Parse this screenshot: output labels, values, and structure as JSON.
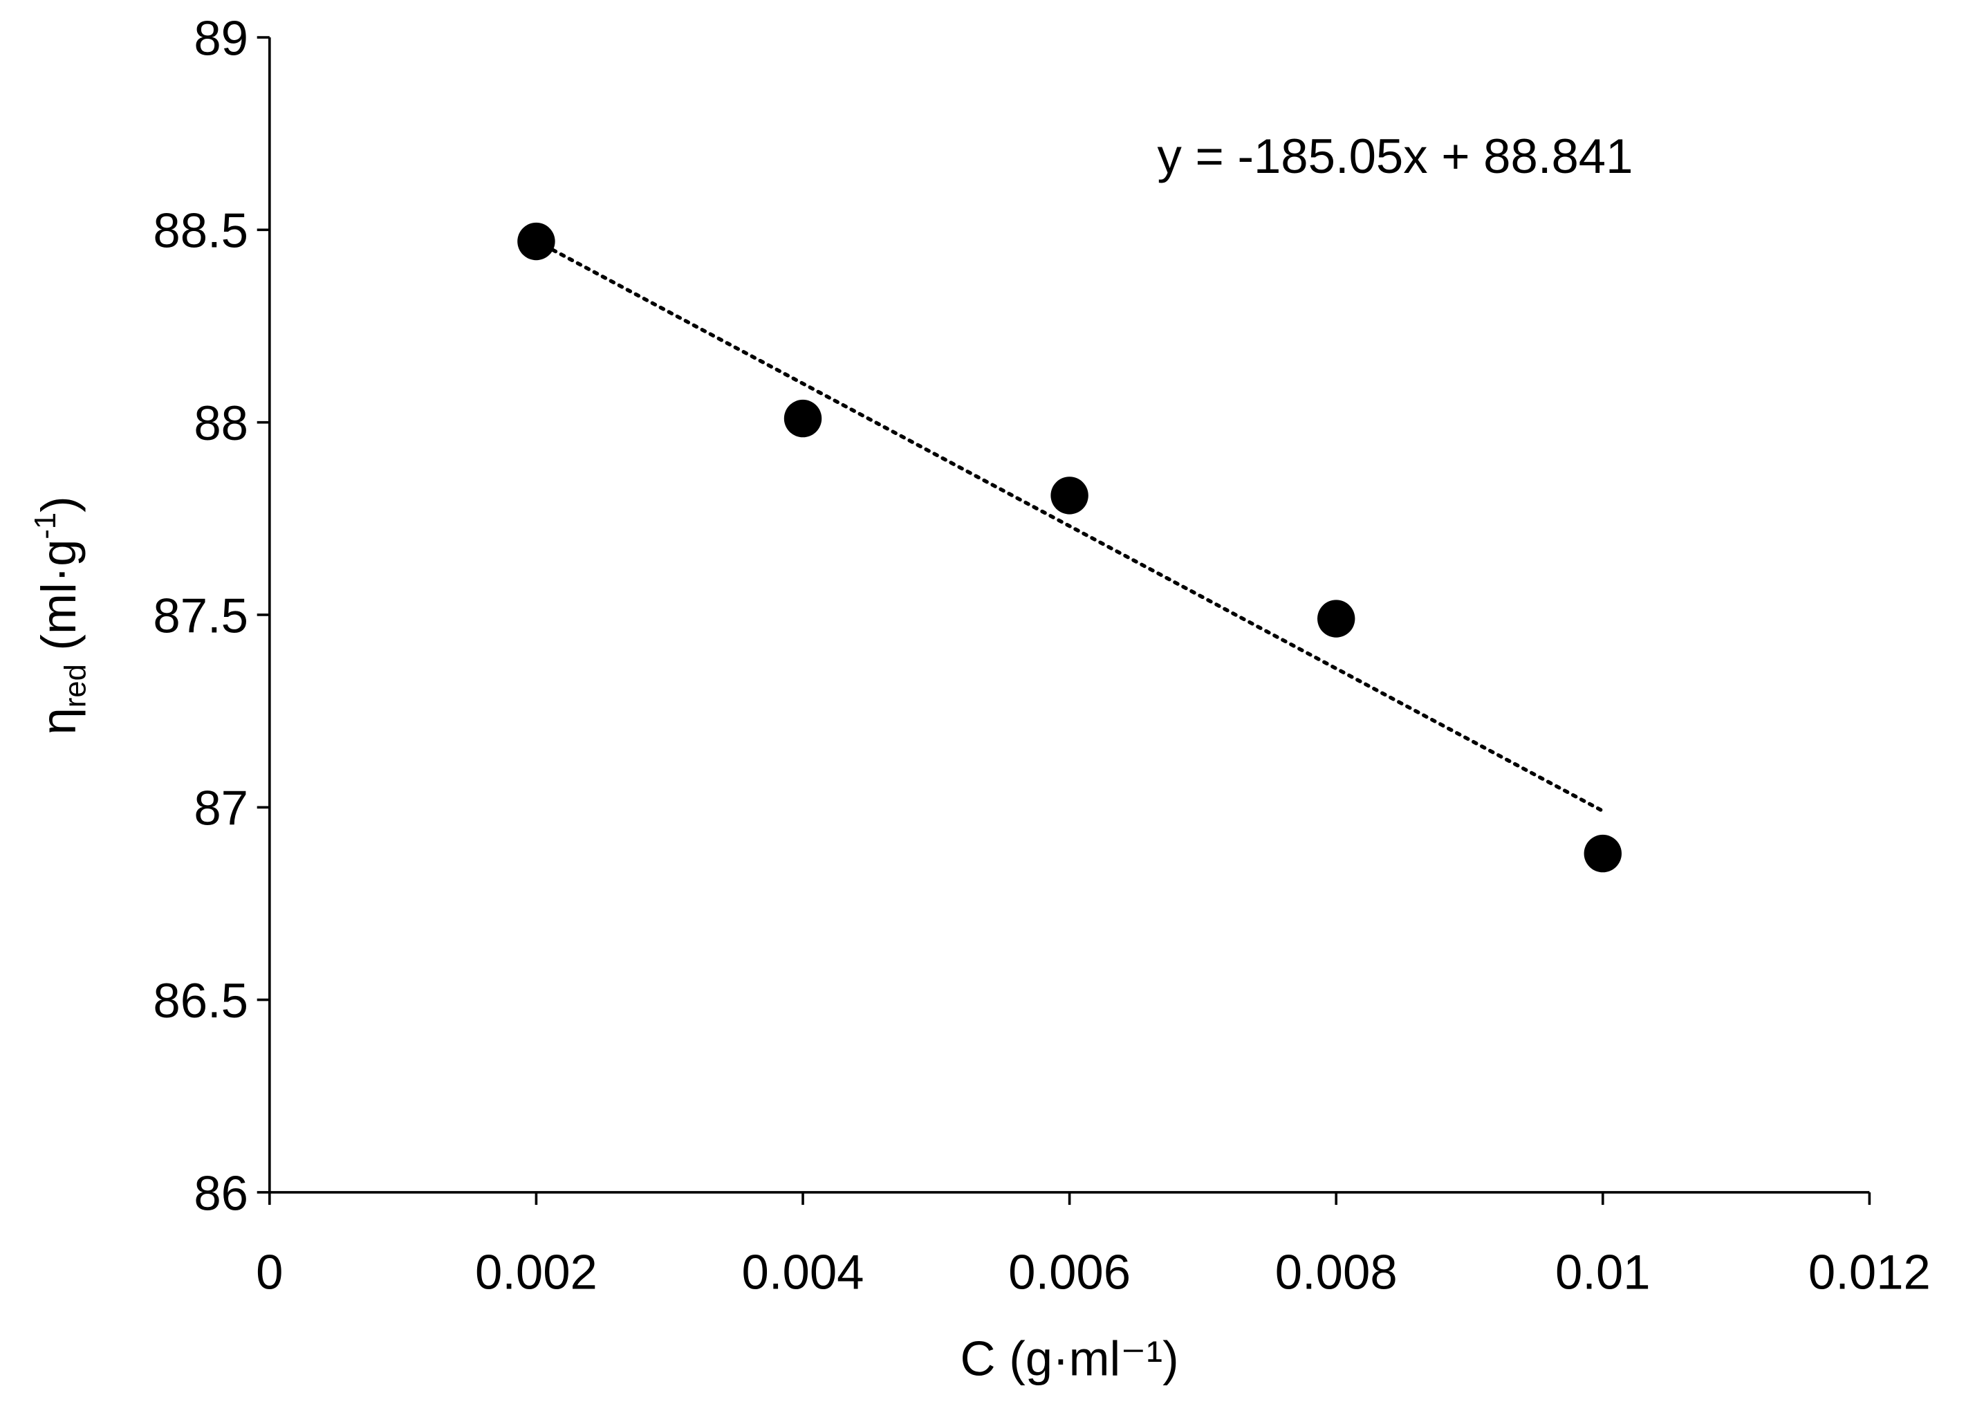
{
  "chart_data": {
    "type": "scatter",
    "xlabel": "C (g·ml⁻¹)",
    "xlabel_parts": {
      "main": "C (g·ml",
      "sup": "-1",
      "end": ")"
    },
    "ylabel": "ηred (ml·g⁻¹)",
    "ylabel_parts": {
      "eta": "η",
      "sub": "red",
      "main": " (ml·g",
      "sup": "-1",
      "end": ")"
    },
    "xlim": [
      0,
      0.012
    ],
    "ylim": [
      86,
      89
    ],
    "x_ticks": [
      "0",
      "0.002",
      "0.004",
      "0.006",
      "0.008",
      "0.01",
      "0.012"
    ],
    "y_ticks": [
      "86",
      "86.5",
      "87",
      "87.5",
      "88",
      "88.5",
      "89"
    ],
    "grid": false,
    "x": [
      0.002,
      0.004,
      0.006,
      0.008,
      0.01
    ],
    "y": [
      88.47,
      88.01,
      87.81,
      87.49,
      86.88
    ],
    "marker_color": "#000000",
    "trendline": {
      "type": "linear",
      "slope": -185.05,
      "intercept": 88.841,
      "style": "dotted",
      "x_range": [
        0.002,
        0.01
      ]
    },
    "annotation": "y = -185.05x + 88.841"
  }
}
